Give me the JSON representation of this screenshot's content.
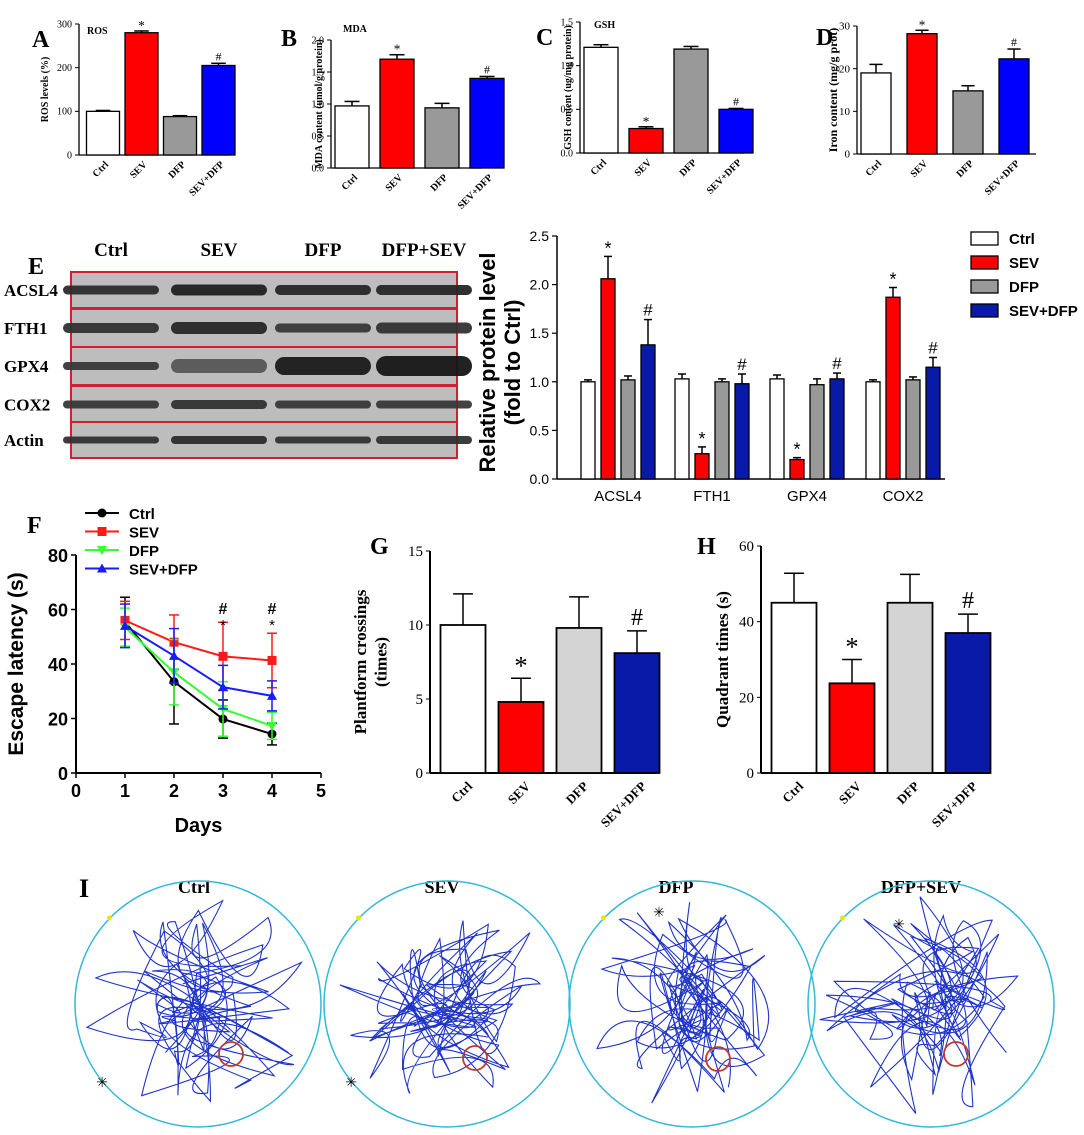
{
  "colors": {
    "ctrl": "#ffffff",
    "sev": "#ff0000",
    "dfp": "#999999",
    "dfp_light": "#d4d4d4",
    "sevdfp": "#0000ff",
    "sevdfp_dark": "#0a1aa8",
    "track": "#1f34c8",
    "pool": "#33b9d8",
    "platform": "#c0392b",
    "blot_border": "#d22030"
  },
  "chart_data": [
    {
      "id": "A",
      "type": "bar",
      "panel_letter": "A",
      "title": "ROS",
      "ylabel": "ROS levels (%)",
      "ylim": [
        0,
        300
      ],
      "yticks": [
        "0",
        "100",
        "200",
        "300"
      ],
      "categories": [
        "Ctrl",
        "SEV",
        "DFP",
        "SEV+DFP"
      ],
      "values": [
        100,
        280,
        88,
        205
      ],
      "errors": [
        2,
        4,
        2,
        5
      ],
      "marks": [
        "",
        "*",
        "",
        "#"
      ]
    },
    {
      "id": "B",
      "type": "bar",
      "panel_letter": "B",
      "title": "MDA",
      "ylabel": "MDA content (umol/g protein)",
      "ylim": [
        0,
        2.0
      ],
      "yticks": [
        "0.0",
        "0.5",
        "1.0",
        "1.5",
        "2.0"
      ],
      "categories": [
        "Ctrl",
        "SEV",
        "DFP",
        "SEV+DFP"
      ],
      "values": [
        0.97,
        1.7,
        0.94,
        1.4
      ],
      "errors": [
        0.07,
        0.07,
        0.07,
        0.03
      ],
      "marks": [
        "",
        "*",
        "",
        "#"
      ]
    },
    {
      "id": "C",
      "type": "bar",
      "panel_letter": "C",
      "title": "GSH",
      "ylabel": "GSH content (ug/mg protein)",
      "ylim": [
        0,
        1.5
      ],
      "yticks": [
        "0.0",
        "0.5",
        "1.0",
        "1.5"
      ],
      "categories": [
        "Ctrl",
        "SEV",
        "DFP",
        "SEV+DFP"
      ],
      "values": [
        1.21,
        0.28,
        1.19,
        0.5
      ],
      "errors": [
        0.03,
        0.02,
        0.03,
        0.01
      ],
      "marks": [
        "",
        "*",
        "",
        "#"
      ]
    },
    {
      "id": "D",
      "type": "bar",
      "panel_letter": "D",
      "title": "",
      "ylabel": "Iron content (mg/g prot)",
      "ylim": [
        0,
        30
      ],
      "yticks": [
        "0",
        "10",
        "20",
        "30"
      ],
      "categories": [
        "Ctrl",
        "SEV",
        "DFP",
        "SEV+DFP"
      ],
      "values": [
        19,
        28.2,
        14.8,
        22.3
      ],
      "errors": [
        2,
        0.8,
        1.2,
        2.3
      ],
      "marks": [
        "",
        "*",
        "",
        "#"
      ]
    },
    {
      "id": "E",
      "type": "bar",
      "panel_letter": "E",
      "ylabel_line1": "Relative protein level",
      "ylabel_line2": "(fold to Ctrl)",
      "ylim": [
        0,
        2.5
      ],
      "yticks": [
        "0.0",
        "0.5",
        "1.0",
        "1.5",
        "2.0",
        "2.5"
      ],
      "categories": [
        "ACSL4",
        "FTH1",
        "GPX4",
        "COX2"
      ],
      "series": [
        {
          "name": "Ctrl",
          "values": [
            1.0,
            1.03,
            1.03,
            1.0
          ],
          "errors": [
            0.02,
            0.05,
            0.04,
            0.02
          ]
        },
        {
          "name": "SEV",
          "values": [
            2.06,
            0.26,
            0.2,
            1.87
          ],
          "errors": [
            0.23,
            0.07,
            0.02,
            0.1
          ]
        },
        {
          "name": "DFP",
          "values": [
            1.02,
            1.0,
            0.97,
            1.02
          ],
          "errors": [
            0.04,
            0.03,
            0.06,
            0.03
          ]
        },
        {
          "name": "SEV+DFP",
          "values": [
            1.38,
            0.98,
            1.03,
            1.15
          ],
          "errors": [
            0.26,
            0.1,
            0.06,
            0.1
          ]
        }
      ],
      "marks": [
        [
          "",
          "*",
          "",
          "#"
        ],
        [
          "",
          "*",
          "",
          "#"
        ],
        [
          "",
          "*",
          "",
          "#"
        ],
        [
          "",
          "*",
          "",
          "#"
        ]
      ],
      "legend": [
        "Ctrl",
        "SEV",
        "DFP",
        "SEV+DFP"
      ]
    },
    {
      "id": "F",
      "type": "line",
      "panel_letter": "F",
      "xlabel": "Days",
      "ylabel": "Escape latency (s)",
      "xlim": [
        0,
        5
      ],
      "ylim": [
        0,
        80
      ],
      "xticks": [
        "0",
        "1",
        "2",
        "3",
        "4",
        "5"
      ],
      "yticks": [
        "0",
        "20",
        "40",
        "60",
        "80"
      ],
      "x": [
        1,
        2,
        3,
        4
      ],
      "series": [
        {
          "name": "Ctrl",
          "values": [
            55.5,
            33.5,
            19.8,
            14.3
          ],
          "errors": [
            9,
            15.5,
            7,
            4
          ]
        },
        {
          "name": "SEV",
          "values": [
            56,
            48,
            42.8,
            41.3
          ],
          "errors": [
            7,
            10,
            12.5,
            10
          ]
        },
        {
          "name": "DFP",
          "values": [
            53.5,
            37,
            23.5,
            17.3
          ],
          "errors": [
            7,
            12,
            10,
            5
          ]
        },
        {
          "name": "SEV+DFP",
          "values": [
            54,
            43,
            31.5,
            28.3
          ],
          "errors": [
            8,
            10,
            8,
            5.5
          ]
        }
      ],
      "annotations": [
        {
          "x": 3,
          "hash": "#",
          "star": "*"
        },
        {
          "x": 4,
          "hash": "#",
          "star": "*"
        }
      ],
      "legend": [
        "Ctrl",
        "SEV",
        "DFP",
        "SEV+DFP"
      ]
    },
    {
      "id": "G",
      "type": "bar",
      "panel_letter": "G",
      "ylabel_line1": "Plantform crossings",
      "ylabel_line2": "(times)",
      "ylim": [
        0,
        15
      ],
      "yticks": [
        "0",
        "5",
        "10",
        "15"
      ],
      "categories": [
        "Ctrl",
        "SEV",
        "DFP",
        "SEV+DFP"
      ],
      "values": [
        10,
        4.8,
        9.8,
        8.1
      ],
      "errors": [
        2.1,
        1.6,
        2.1,
        1.5
      ],
      "marks": [
        "",
        "*",
        "",
        "#"
      ]
    },
    {
      "id": "H",
      "type": "bar",
      "panel_letter": "H",
      "ylabel": "Quadrant times (s)",
      "ylim": [
        0,
        60
      ],
      "yticks": [
        "0",
        "20",
        "40",
        "60"
      ],
      "categories": [
        "Ctrl",
        "SEV",
        "DFP",
        "SEV+DFP"
      ],
      "values": [
        45,
        23.7,
        45,
        37
      ],
      "errors": [
        7.8,
        6.3,
        7.5,
        5
      ],
      "marks": [
        "",
        "*",
        "",
        "#"
      ]
    }
  ],
  "blot": {
    "letter": "E",
    "columns": [
      "Ctrl",
      "SEV",
      "DFP",
      "DFP+SEV"
    ],
    "rows": [
      "ACSL4",
      "FTH1",
      "GPX4",
      "COX2",
      "Actin"
    ]
  },
  "swim": {
    "letter": "I",
    "titles": [
      "Ctrl",
      "SEV",
      "DFP",
      "DFP+SEV"
    ]
  }
}
